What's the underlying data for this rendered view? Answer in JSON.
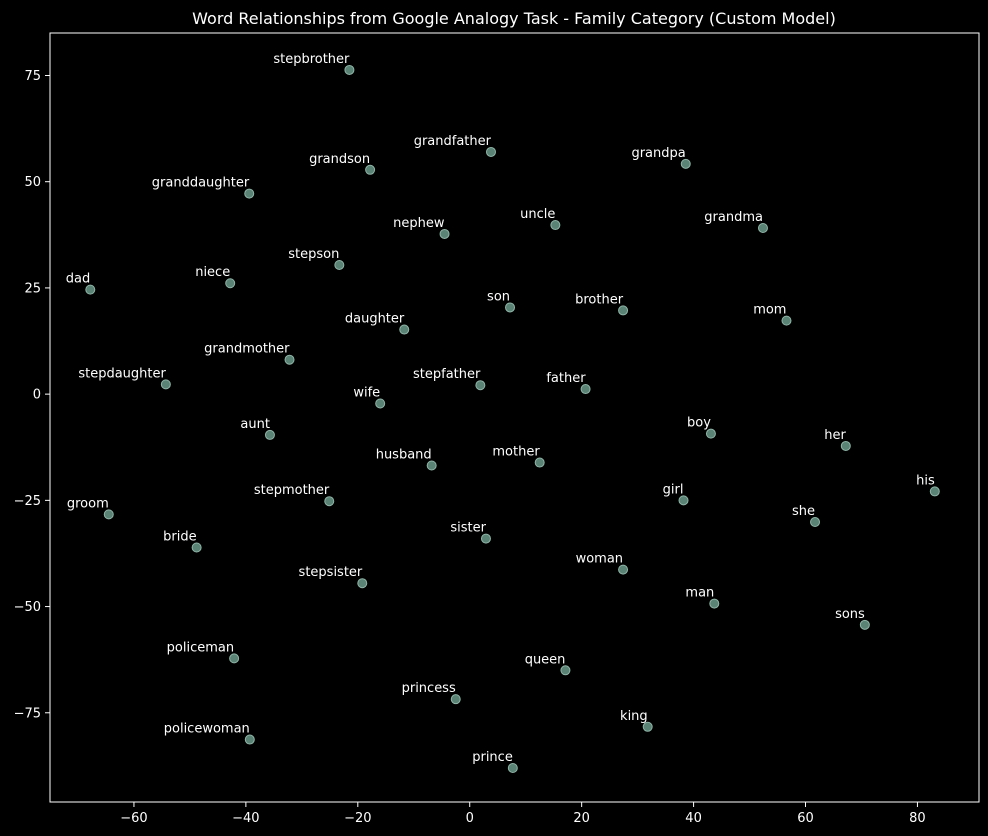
{
  "chart_data": {
    "type": "scatter",
    "title": "Word Relationships from Google Analogy Task - Family Category (Custom Model)",
    "xlabel": "",
    "ylabel": "",
    "xlim": [
      -75,
      91
    ],
    "ylim": [
      -96,
      85
    ],
    "xticks": [
      -60,
      -40,
      -20,
      0,
      20,
      40,
      60,
      80
    ],
    "yticks": [
      75,
      50,
      25,
      0,
      -25,
      -50,
      -75
    ],
    "xtick_labels": [
      "−60",
      "−40",
      "−20",
      "0",
      "20",
      "40",
      "60",
      "80"
    ],
    "ytick_labels": [
      "75",
      "50",
      "25",
      "0",
      "−25",
      "−50",
      "−75"
    ],
    "grid": false,
    "colors": {
      "background": "#000000",
      "point": "#6a9a8a",
      "text": "#ffffff"
    },
    "points": [
      {
        "label": "stepbrother",
        "x": -21.5,
        "y": 76.3
      },
      {
        "label": "grandfather",
        "x": 3.8,
        "y": 57.0
      },
      {
        "label": "grandpa",
        "x": 38.6,
        "y": 54.2
      },
      {
        "label": "grandson",
        "x": -17.8,
        "y": 52.8
      },
      {
        "label": "granddaughter",
        "x": -39.4,
        "y": 47.2
      },
      {
        "label": "nephew",
        "x": -4.5,
        "y": 37.7
      },
      {
        "label": "uncle",
        "x": 15.3,
        "y": 39.8
      },
      {
        "label": "grandma",
        "x": 52.4,
        "y": 39.1
      },
      {
        "label": "stepson",
        "x": -23.3,
        "y": 30.4
      },
      {
        "label": "niece",
        "x": -42.8,
        "y": 26.1
      },
      {
        "label": "dad",
        "x": -67.8,
        "y": 24.6
      },
      {
        "label": "son",
        "x": 7.2,
        "y": 20.4
      },
      {
        "label": "brother",
        "x": 27.4,
        "y": 19.7
      },
      {
        "label": "mom",
        "x": 56.6,
        "y": 17.3
      },
      {
        "label": "daughter",
        "x": -11.7,
        "y": 15.2
      },
      {
        "label": "grandmother",
        "x": -32.2,
        "y": 8.1
      },
      {
        "label": "stepdaughter",
        "x": -54.3,
        "y": 2.3
      },
      {
        "label": "stepfather",
        "x": 1.9,
        "y": 2.1
      },
      {
        "label": "father",
        "x": 20.7,
        "y": 1.2
      },
      {
        "label": "wife",
        "x": -16.0,
        "y": -2.2
      },
      {
        "label": "aunt",
        "x": -35.7,
        "y": -9.6
      },
      {
        "label": "boy",
        "x": 43.1,
        "y": -9.3
      },
      {
        "label": "her",
        "x": 67.2,
        "y": -12.2
      },
      {
        "label": "husband",
        "x": -6.8,
        "y": -16.8
      },
      {
        "label": "mother",
        "x": 12.5,
        "y": -16.1
      },
      {
        "label": "his",
        "x": 83.1,
        "y": -22.9
      },
      {
        "label": "girl",
        "x": 38.2,
        "y": -25.0
      },
      {
        "label": "stepmother",
        "x": -25.1,
        "y": -25.2
      },
      {
        "label": "groom",
        "x": -64.5,
        "y": -28.3
      },
      {
        "label": "she",
        "x": 61.7,
        "y": -30.1
      },
      {
        "label": "sister",
        "x": 2.9,
        "y": -34.0
      },
      {
        "label": "bride",
        "x": -48.8,
        "y": -36.1
      },
      {
        "label": "woman",
        "x": 27.4,
        "y": -41.3
      },
      {
        "label": "stepsister",
        "x": -19.2,
        "y": -44.5
      },
      {
        "label": "man",
        "x": 43.7,
        "y": -49.3
      },
      {
        "label": "sons",
        "x": 70.6,
        "y": -54.3
      },
      {
        "label": "policeman",
        "x": -42.1,
        "y": -62.2
      },
      {
        "label": "queen",
        "x": 17.1,
        "y": -65.0
      },
      {
        "label": "princess",
        "x": -2.5,
        "y": -71.8
      },
      {
        "label": "king",
        "x": 31.8,
        "y": -78.3
      },
      {
        "label": "policewoman",
        "x": -39.3,
        "y": -81.3
      },
      {
        "label": "prince",
        "x": 7.7,
        "y": -88.0
      }
    ]
  }
}
